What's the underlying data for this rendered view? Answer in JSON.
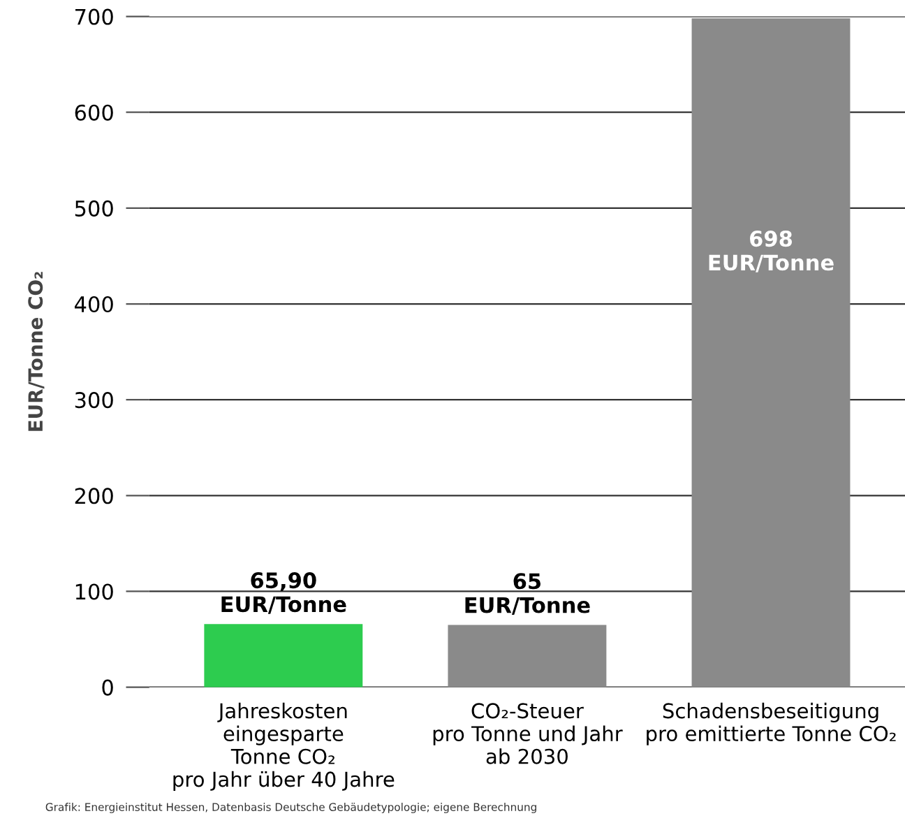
{
  "chart_data": {
    "type": "bar",
    "ylabel": "EUR/Tonne CO₂",
    "categories": [
      "Jahreskosten\neingesparte\nTonne CO₂\npro Jahr über 40 Jahre",
      "CO₂-Steuer\npro Tonne und Jahr\nab 2030",
      "Schadensbeseitigung\npro emittierte Tonne CO₂"
    ],
    "values": [
      65.9,
      65,
      698
    ],
    "colors": [
      "#2dcc4f",
      "#8a8a8a",
      "#8a8a8a"
    ],
    "value_labels": [
      "65,90\nEUR/Tonne",
      "65\nEUR/Tonne",
      "698\nEUR/Tonne"
    ],
    "ylim": [
      0,
      700
    ],
    "yticks": [
      0,
      100,
      200,
      300,
      400,
      500,
      600,
      700
    ],
    "grid": "y",
    "annotations": [
      "Grafik: Energieinstitut Hessen, Datenbasis Deutsche Gebäudetypologie; eigene Berechnung"
    ]
  }
}
